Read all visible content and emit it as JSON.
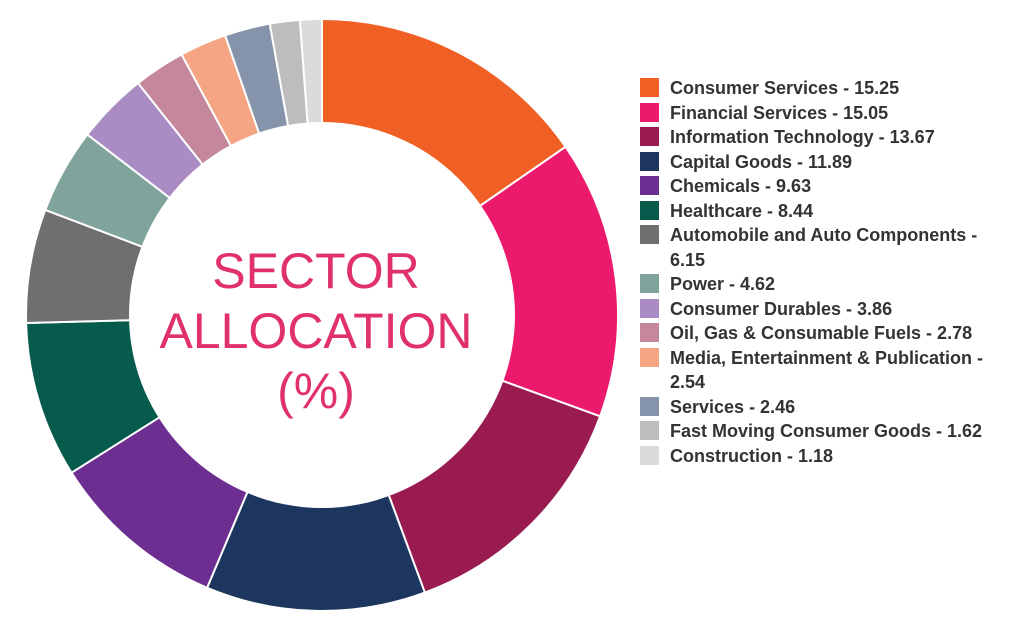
{
  "chart_data": {
    "type": "pie",
    "donut": true,
    "title_lines": [
      "SECTOR",
      "ALLOCATION",
      "(%)"
    ],
    "legend_position": "right",
    "slices": [
      {
        "label": "Consumer Services - 15.25",
        "value": 15.25,
        "color": "#f05f24"
      },
      {
        "label": "Financial Services - 15.05",
        "value": 15.05,
        "color": "#ec1a6c"
      },
      {
        "label": "Information Technology - 13.67",
        "value": 13.67,
        "color": "#991b4f"
      },
      {
        "label": "Capital Goods - 11.89",
        "value": 11.89,
        "color": "#1c3660"
      },
      {
        "label": "Chemicals - 9.63",
        "value": 9.63,
        "color": "#6c2f91"
      },
      {
        "label": "Healthcare - 8.44",
        "value": 8.44,
        "color": "#075b4c"
      },
      {
        "label": "Automobile and Auto Components - 6.15",
        "value": 6.15,
        "color": "#6e6f71"
      },
      {
        "label": "Power - 4.62",
        "value": 4.62,
        "color": "#80a39b"
      },
      {
        "label": "Consumer Durables - 3.86",
        "value": 3.86,
        "color": "#a98cc3"
      },
      {
        "label": "Oil, Gas & Consumable Fuels - 2.78",
        "value": 2.78,
        "color": "#c5879b"
      },
      {
        "label": "Media, Entertainment & Publication - 2.54",
        "value": 2.54,
        "color": "#f6a584"
      },
      {
        "label": "Services - 2.46",
        "value": 2.46,
        "color": "#8594ab"
      },
      {
        "label": "Fast Moving Consumer Goods - 1.62",
        "value": 1.62,
        "color": "#bdbdbe"
      },
      {
        "label": "Construction - 1.18",
        "value": 1.18,
        "color": "#dbdbdb"
      }
    ]
  }
}
